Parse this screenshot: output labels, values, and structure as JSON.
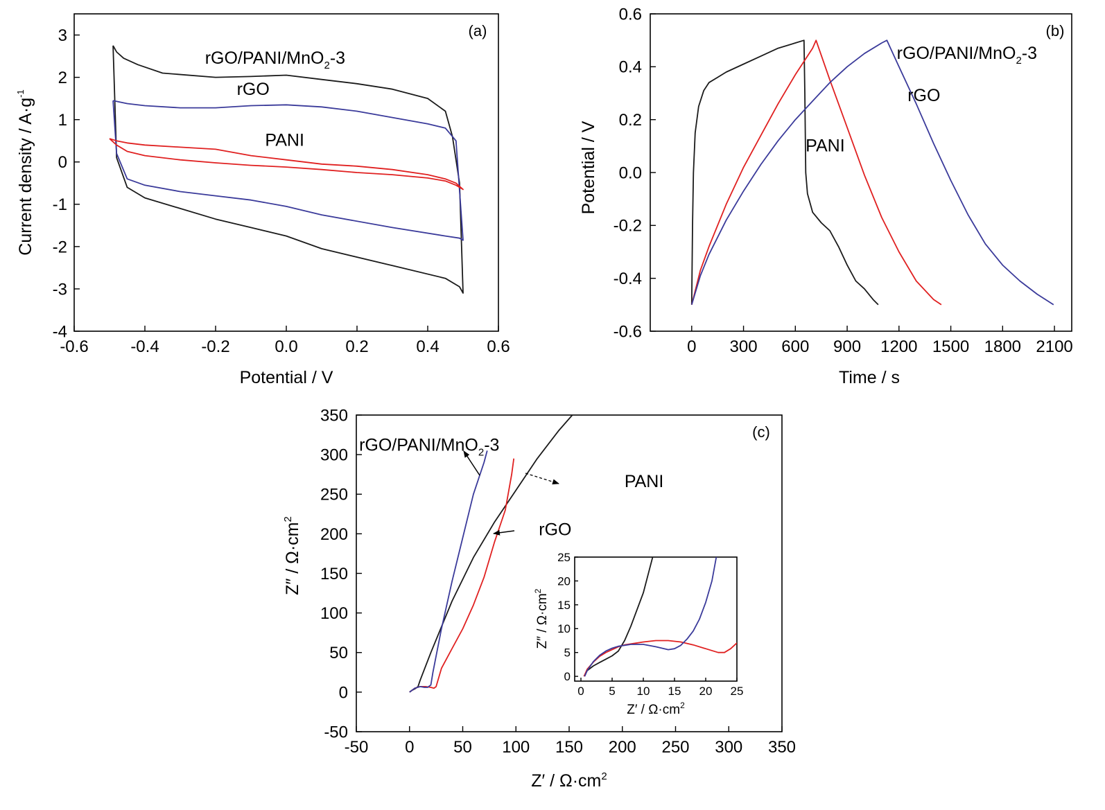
{
  "colors": {
    "black": "#1a1a1a",
    "blue": "#3a3a9a",
    "red": "#e02020"
  },
  "chart_data": [
    {
      "type": "line",
      "panel_label": "(a)",
      "xlabel": "Potential / V",
      "ylabel_main": "Current density / A·g",
      "ylabel_sup": "-1",
      "xlim": [
        -0.6,
        0.6
      ],
      "ylim": [
        -4,
        3.5
      ],
      "xticks": [
        -0.6,
        -0.4,
        -0.2,
        0.0,
        0.2,
        0.4,
        0.6
      ],
      "xtick_labels": [
        "-0.6",
        "-0.4",
        "-0.2",
        "0.0",
        "0.2",
        "0.4",
        "0.6"
      ],
      "yticks": [
        -4,
        -3,
        -2,
        -1,
        0,
        1,
        2,
        3
      ],
      "ytick_labels": [
        "-4",
        "-3",
        "-2",
        "-1",
        "0",
        "1",
        "2",
        "3"
      ],
      "series": [
        {
          "name": "rGO/PANI/MnO2-3",
          "color": "#1a1a1a",
          "x": [
            -0.49,
            -0.48,
            -0.46,
            -0.42,
            -0.35,
            -0.2,
            -0.1,
            0.0,
            0.1,
            0.2,
            0.3,
            0.4,
            0.45,
            0.47,
            0.49,
            0.5,
            0.49,
            0.45,
            0.3,
            0.1,
            0.0,
            -0.1,
            -0.2,
            -0.3,
            -0.4,
            -0.45,
            -0.48,
            -0.49
          ],
          "y": [
            2.75,
            2.6,
            2.45,
            2.3,
            2.1,
            2.0,
            2.02,
            2.05,
            1.95,
            1.85,
            1.72,
            1.5,
            1.2,
            0.6,
            -0.5,
            -3.1,
            -2.95,
            -2.75,
            -2.45,
            -2.05,
            -1.75,
            -1.55,
            -1.35,
            -1.1,
            -0.85,
            -0.6,
            0.1,
            2.75
          ]
        },
        {
          "name": "rGO",
          "color": "#3a3a9a",
          "x": [
            -0.49,
            -0.45,
            -0.4,
            -0.3,
            -0.2,
            -0.1,
            0.0,
            0.1,
            0.2,
            0.3,
            0.4,
            0.45,
            0.48,
            0.5,
            0.49,
            0.45,
            0.3,
            0.1,
            0.0,
            -0.1,
            -0.2,
            -0.3,
            -0.4,
            -0.45,
            -0.48,
            -0.49
          ],
          "y": [
            1.45,
            1.38,
            1.33,
            1.28,
            1.28,
            1.33,
            1.35,
            1.3,
            1.2,
            1.05,
            0.9,
            0.8,
            0.5,
            -1.85,
            -1.8,
            -1.75,
            -1.55,
            -1.25,
            -1.05,
            -0.9,
            -0.8,
            -0.7,
            -0.55,
            -0.4,
            0.2,
            1.45
          ]
        },
        {
          "name": "PANI",
          "color": "#e02020",
          "x": [
            -0.5,
            -0.48,
            -0.45,
            -0.4,
            -0.3,
            -0.2,
            -0.1,
            0.0,
            0.1,
            0.2,
            0.3,
            0.4,
            0.45,
            0.48,
            0.5,
            0.48,
            0.45,
            0.4,
            0.3,
            0.2,
            0.1,
            0.0,
            -0.1,
            -0.2,
            -0.3,
            -0.4,
            -0.45,
            -0.48,
            -0.5
          ],
          "y": [
            0.55,
            0.5,
            0.45,
            0.4,
            0.35,
            0.3,
            0.15,
            0.05,
            -0.05,
            -0.1,
            -0.18,
            -0.3,
            -0.4,
            -0.5,
            -0.65,
            -0.55,
            -0.45,
            -0.38,
            -0.3,
            -0.25,
            -0.18,
            -0.12,
            -0.08,
            -0.02,
            0.05,
            0.15,
            0.25,
            0.4,
            0.55
          ]
        }
      ],
      "annotations": [
        {
          "text": "rGO/PANI/MnO",
          "sub": "2",
          "tail": "-3",
          "x": -0.23,
          "y": 2.45
        },
        {
          "text": "rGO",
          "x": -0.14,
          "y": 1.58
        },
        {
          "text": "PANI",
          "x": -0.06,
          "y": 0.38
        }
      ]
    },
    {
      "type": "line",
      "panel_label": "(b)",
      "xlabel": "Time / s",
      "ylabel": "Potential / V",
      "xlim": [
        -240,
        2200
      ],
      "ylim": [
        -0.6,
        0.6
      ],
      "xticks": [
        0,
        300,
        600,
        900,
        1200,
        1500,
        1800,
        2100
      ],
      "xtick_labels": [
        "0",
        "300",
        "600",
        "900",
        "1200",
        "1500",
        "1800",
        "2100"
      ],
      "yticks": [
        -0.6,
        -0.4,
        -0.2,
        0.0,
        0.2,
        0.4,
        0.6
      ],
      "ytick_labels": [
        "-0.6",
        "-0.4",
        "-0.2",
        "0.0",
        "0.2",
        "0.4",
        "0.6"
      ],
      "series": [
        {
          "name": "PANI",
          "color": "#1a1a1a",
          "x": [
            0,
            5,
            10,
            20,
            40,
            70,
            100,
            150,
            200,
            300,
            400,
            500,
            600,
            650,
            655,
            660,
            670,
            700,
            750,
            800,
            850,
            900,
            950,
            1000,
            1050,
            1080
          ],
          "y": [
            -0.5,
            -0.2,
            0.0,
            0.15,
            0.25,
            0.31,
            0.34,
            0.36,
            0.38,
            0.41,
            0.44,
            0.47,
            0.49,
            0.5,
            0.3,
            0.0,
            -0.08,
            -0.15,
            -0.19,
            -0.22,
            -0.28,
            -0.35,
            -0.41,
            -0.44,
            -0.48,
            -0.5
          ]
        },
        {
          "name": "rGO",
          "color": "#e02020",
          "x": [
            0,
            50,
            100,
            200,
            300,
            400,
            500,
            600,
            700,
            720,
            800,
            900,
            1000,
            1100,
            1200,
            1300,
            1400,
            1445
          ],
          "y": [
            -0.5,
            -0.37,
            -0.28,
            -0.12,
            0.02,
            0.14,
            0.26,
            0.37,
            0.47,
            0.5,
            0.35,
            0.17,
            -0.01,
            -0.17,
            -0.3,
            -0.41,
            -0.48,
            -0.5
          ]
        },
        {
          "name": "rGO/PANI/MnO2-3",
          "color": "#3a3a9a",
          "x": [
            0,
            50,
            100,
            200,
            300,
            400,
            500,
            600,
            700,
            800,
            900,
            1000,
            1100,
            1130,
            1200,
            1300,
            1400,
            1500,
            1600,
            1700,
            1800,
            1900,
            2000,
            2095
          ],
          "y": [
            -0.5,
            -0.39,
            -0.31,
            -0.18,
            -0.07,
            0.03,
            0.12,
            0.2,
            0.27,
            0.34,
            0.4,
            0.45,
            0.49,
            0.5,
            0.4,
            0.26,
            0.11,
            -0.03,
            -0.16,
            -0.27,
            -0.35,
            -0.41,
            -0.46,
            -0.5
          ]
        }
      ],
      "annotations": [
        {
          "text": "rGO/PANI/MnO",
          "sub": "2",
          "tail": "-3",
          "x": 1990,
          "y": 0.43
        },
        {
          "text": "rGO",
          "x": 1330,
          "y": 0.27
        },
        {
          "text": "PANI",
          "x": 780,
          "y": 0.08
        }
      ]
    },
    {
      "type": "line",
      "panel_label": "(c)",
      "xlabel_main": "Z′ / Ω·cm",
      "xlabel_sup": "2",
      "ylabel_main": "Z″ / Ω·cm",
      "ylabel_sup": "2",
      "xlim": [
        -50,
        350
      ],
      "ylim": [
        -50,
        350
      ],
      "xticks": [
        -50,
        0,
        50,
        100,
        150,
        200,
        250,
        300,
        350
      ],
      "xtick_labels": [
        "-50",
        "0",
        "50",
        "100",
        "150",
        "200",
        "250",
        "300",
        "350"
      ],
      "yticks": [
        -50,
        0,
        50,
        100,
        150,
        200,
        250,
        300,
        350
      ],
      "ytick_labels": [
        "-50",
        "0",
        "50",
        "100",
        "150",
        "200",
        "250",
        "300",
        "350"
      ],
      "series": [
        {
          "name": "PANI",
          "color": "#1a1a1a",
          "x": [
            0,
            2,
            4,
            6,
            8,
            10,
            20,
            40,
            60,
            80,
            100,
            120,
            140,
            153
          ],
          "y": [
            0,
            2,
            3.5,
            5,
            7,
            15,
            50,
            115,
            170,
            215,
            255,
            295,
            330,
            350
          ]
        },
        {
          "name": "rGO",
          "color": "#e02020",
          "x": [
            0,
            5,
            10,
            15,
            20,
            23,
            25,
            30,
            40,
            50,
            60,
            70,
            80,
            85,
            90,
            96,
            98
          ],
          "y": [
            0,
            5,
            7,
            7,
            6,
            5,
            7,
            30,
            55,
            80,
            110,
            145,
            190,
            210,
            230,
            275,
            295
          ]
        },
        {
          "name": "rGO/PANI/MnO2-3",
          "color": "#3a3a9a",
          "x": [
            0,
            5,
            10,
            14,
            17,
            20,
            22,
            30,
            40,
            50,
            60,
            70,
            73
          ],
          "y": [
            0,
            5,
            7,
            6,
            6,
            9,
            25,
            80,
            140,
            195,
            250,
            290,
            305
          ]
        }
      ],
      "annotations": [
        {
          "text": "rGO/PANI/MnO",
          "sub": "2",
          "tail": "-3",
          "x": 109,
          "y": 312
        },
        {
          "text": "PANI",
          "x": 202,
          "y": 266
        },
        {
          "text": "rGO",
          "x": 115,
          "y": 205
        }
      ],
      "inset": {
        "xlabel_main": "Z′ / Ω·cm",
        "xlabel_sup": "2",
        "ylabel_main": "Z″ / Ω·cm",
        "ylabel_sup": "2",
        "xlim": [
          -1,
          25
        ],
        "ylim": [
          -1,
          25
        ],
        "xticks": [
          0,
          5,
          10,
          15,
          20,
          25
        ],
        "xtick_labels": [
          "0",
          "5",
          "10",
          "15",
          "20",
          "25"
        ],
        "yticks": [
          0,
          5,
          10,
          15,
          20,
          25
        ],
        "ytick_labels": [
          "0",
          "5",
          "10",
          "15",
          "20",
          "25"
        ],
        "series": [
          {
            "name": "PANI",
            "color": "#1a1a1a",
            "x": [
              0.5,
              1,
              2,
              3,
              4,
              5,
              6,
              7,
              8,
              9,
              10,
              11,
              11.5
            ],
            "y": [
              0,
              1.2,
              2.2,
              2.9,
              3.6,
              4.3,
              5.3,
              7.5,
              10.5,
              14,
              17.5,
              22.5,
              25
            ]
          },
          {
            "name": "rGO",
            "color": "#e02020",
            "x": [
              0.5,
              1,
              2,
              3,
              4,
              5,
              6,
              7,
              8,
              10,
              12,
              14,
              16,
              18,
              20,
              22,
              23,
              24,
              25
            ],
            "y": [
              0,
              1.5,
              3,
              4.2,
              5,
              5.6,
              6.2,
              6.6,
              6.8,
              7.2,
              7.5,
              7.5,
              7.2,
              6.6,
              5.8,
              5,
              5,
              5.8,
              7
            ]
          },
          {
            "name": "rGO/PANI/MnO2-3",
            "color": "#3a3a9a",
            "x": [
              0.6,
              1,
              2,
              3,
              4,
              5,
              6,
              8,
              10,
              12,
              14,
              15,
              16,
              17,
              18,
              19,
              20,
              21,
              21.7
            ],
            "y": [
              0,
              1.2,
              3.1,
              4.4,
              5.3,
              5.9,
              6.3,
              6.7,
              6.7,
              6.2,
              5.6,
              5.8,
              6.5,
              7.8,
              9.5,
              12,
              15.5,
              20,
              25
            ]
          }
        ]
      }
    }
  ]
}
